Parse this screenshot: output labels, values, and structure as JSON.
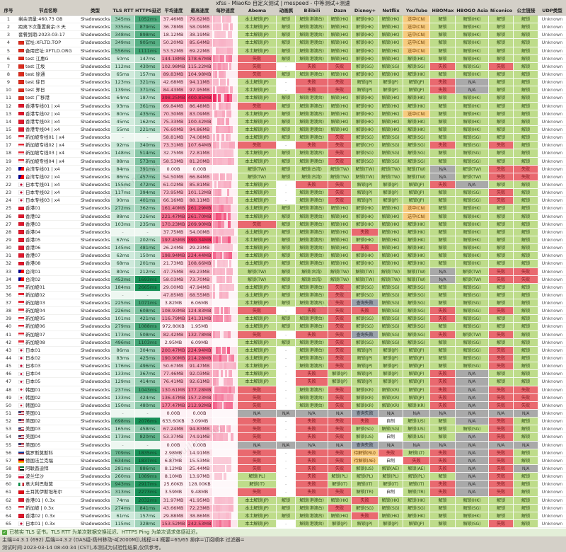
{
  "title": "xfss - MiaoKo 自定义测试 | mespeed - 中等测试+测速",
  "columns": [
    "序号",
    "节点名称",
    "类型",
    "TLS RTT",
    "HTTPS延迟",
    "平均速度",
    "最高速度",
    "每秒速度",
    "Abema",
    "动画疯",
    "Bilibili",
    "Dazn",
    "Disney+",
    "Netflix",
    "YouTube",
    "HBOMax",
    "HBOGO Asia",
    "Niconico",
    "公主链接",
    "UDP类型"
  ],
  "node_type": "Shadowsocks",
  "udp_all": "Unknown",
  "watermark": "@guilincong",
  "colors": {
    "header_bg": "#d4d0c8",
    "unlock_green": "#bedc8a",
    "fail_red": "#e9696f",
    "warn_orange": "#f7cb7e",
    "na_gray": "#a9a9a9",
    "query_gray": "#99a1ab",
    "latency_green_dark": "#169054",
    "latency_green_light": "#e2f3e9",
    "speed_pink_light": "#fdf0f4",
    "speed_red_dark": "#f13764"
  },
  "service_patterns": {
    "A": [
      "本土解锁(JP)",
      "解锁",
      "解锁(港澳台)",
      "解锁(HK)",
      "解锁(HK)",
      "解锁(HK)",
      "送中(CN)",
      "解锁",
      "解锁(HK)",
      "解锁",
      "解锁"
    ],
    "HK": [
      "本土解锁(JP)",
      "解锁",
      "解锁(港澳台)",
      "解锁(HK)",
      "解锁(HK)",
      "解锁(HK)",
      "解锁(HK)",
      "解锁",
      "解锁(HK)",
      "解锁",
      "解锁"
    ],
    "FAB": [
      "失败",
      "解锁",
      "解锁(港澳台)",
      "解锁(HK)",
      "解锁(HK)",
      "解锁(HK)",
      "解锁(HK)",
      "解锁",
      "解锁(HK)",
      "解锁",
      "解锁"
    ],
    "HKDF": [
      "本土解锁(JP)",
      "解锁",
      "解锁(港澳台)",
      "解锁(HK)",
      "失败",
      "解锁(HK)",
      "解锁(HK)",
      "解锁",
      "解锁(HK)",
      "解锁",
      "解锁"
    ],
    "SG": [
      "本土解锁(JP)",
      "解锁",
      "解锁(港澳台)",
      "失败",
      "解锁(SG)",
      "解锁(SG)",
      "解锁(SG)",
      "解锁",
      "解锁(SG)",
      "解锁",
      "解锁"
    ],
    "SGT": [
      "失败",
      "-",
      "失败",
      "失败",
      "解锁(SG)",
      "解锁(SG)",
      "解锁(SG)",
      "失败",
      "解锁(SG)",
      "失败",
      "解锁"
    ],
    "SGCH": [
      "失败",
      "-",
      "失败",
      "失败",
      "解锁(CH)",
      "解锁(SG)",
      "解锁(SG)",
      "失败",
      "解锁(SG)",
      "失败",
      "解锁"
    ],
    "SGQ": [
      "本土解锁(JP)",
      "解锁",
      "解锁(港澳台)",
      "失败",
      "查询失败",
      "解锁(SG)",
      "解锁(SG)",
      "解锁",
      "解锁(SG)",
      "解锁",
      "解锁"
    ],
    "SGF": [
      "失败",
      "-",
      "失败",
      "失败",
      "失败",
      "解锁(SG)",
      "解锁(SG)",
      "失败",
      "解锁(SG)",
      "失败",
      "解锁"
    ],
    "SGH": [
      "本土解锁(JP)",
      "解锁",
      "解锁(港澳台)",
      "失败",
      "解锁(SG)",
      "解锁(SG)",
      "解锁(SG)",
      "失败",
      "解锁(SG)",
      "解锁",
      "解锁"
    ],
    "SGQ2": [
      "失败",
      "-",
      "失败",
      "失败",
      "查询失败",
      "解锁(SG)",
      "解锁(SG)",
      "失败",
      "解锁(TW)",
      "失败",
      "解锁"
    ],
    "TW": [
      "解锁(TW)",
      "解锁",
      "解锁(台湾)",
      "解锁(TW)",
      "解锁(TW)",
      "解锁(TW)",
      "解锁(TW)",
      "N/A",
      "解锁(TW)",
      "失败",
      "失败"
    ],
    "JPT": [
      "本土解锁(JP)",
      "-",
      "失败",
      "失败",
      "解锁(JP)",
      "解锁(JP)",
      "解锁(JP)",
      "失败",
      "N/A",
      "解锁",
      "解锁"
    ],
    "JPSG": [
      "本土解锁(JP)",
      "-",
      "解锁(港澳台)",
      "失败",
      "解锁(JP)",
      "解锁(JP)",
      "解锁(JP)",
      "解锁",
      "解锁(SG)",
      "失败",
      "解锁"
    ],
    "JP2": [
      "本土解锁(JP)",
      "-",
      "失败",
      "解锁(JP)",
      "解锁(JP)",
      "解锁(JP)",
      "解锁(JP)",
      "失败",
      "N/A",
      "解锁",
      "解锁"
    ],
    "KRJ": [
      "失败",
      "-",
      "解锁(港澳台)",
      "失败",
      "解锁(KR)",
      "解锁(KR)",
      "解锁(JP)",
      "失败",
      "N/A",
      "失败",
      "失败"
    ],
    "KR": [
      "失败",
      "-",
      "解锁(港澳台)",
      "失败",
      "解锁(KR)",
      "解锁(KR)",
      "解锁(KR)",
      "失败",
      "N/A",
      "失败",
      "失败"
    ],
    "NA": [
      "N/A",
      "N/A",
      "N/A",
      "N/A",
      "查询失败",
      "N/A",
      "N/A",
      "N/A",
      "N/A",
      "N/A",
      "N/A"
    ],
    "US2": [
      "失败",
      "-",
      "失败",
      "失败",
      "失败",
      "自制",
      "解锁(US)",
      "解锁",
      "N/A",
      "失败",
      "解锁"
    ],
    "US3": [
      "失败",
      "-",
      "失败",
      "失败",
      "解锁(SG)",
      "解锁(SG)",
      "解锁(US)",
      "解锁",
      "解锁(SG)",
      "失败",
      "解锁"
    ],
    "US4": [
      "失败",
      "-",
      "失败",
      "失败",
      "解锁(US)",
      "自制",
      "解锁(US)",
      "解锁",
      "N/A",
      "失败",
      "解锁"
    ],
    "RU": [
      "失败",
      "-",
      "失败",
      "失败",
      "待解锁(RU)",
      "失败",
      "解锁(LT)",
      "失败",
      "N/A",
      "失败",
      "解锁"
    ],
    "DE": [
      "失败",
      "-",
      "失败",
      "失败",
      "待解锁(AE)",
      "自制",
      "失败",
      "失败",
      "N/A",
      "失败",
      "解锁"
    ],
    "AE": [
      "失败",
      "-",
      "失败",
      "失败",
      "解锁(US)",
      "解锁(AE)",
      "解锁(AE)",
      "失败",
      "N/A",
      "失败",
      "N/A"
    ],
    "PL": [
      "解锁(PL)",
      "-",
      "失败",
      "解锁(PL)",
      "解锁(PL)",
      "解锁(PL)",
      "解锁(PL)",
      "解锁",
      "N/A",
      "失败",
      "解锁"
    ],
    "IT": [
      "解锁(IT)",
      "-",
      "失败",
      "解锁(IT)",
      "解锁(IT)",
      "解锁(IT)",
      "解锁(IT)",
      "失败",
      "N/A",
      "失败",
      "解锁"
    ],
    "TR": [
      "失败",
      "-",
      "失败",
      "失败",
      "解锁(TR)",
      "自制",
      "解锁(TR)",
      "失败",
      "N/A",
      "失败",
      "解锁"
    ],
    "JP65": [
      "本土解锁(JP)",
      "-",
      "解锁(港澳台)",
      "解锁(JP)",
      "解锁(JP)",
      "解锁(JP)",
      "解锁(JP)",
      "解锁",
      "解锁(SG)",
      "失败",
      "解锁"
    ]
  },
  "rows": [
    [
      "",
      "剩余流量:460.73 GB",
      "345ms",
      "1052ms",
      "37.46MB",
      "79.62MB",
      "A"
    ],
    [
      "",
      "距离下次重置剩余:3 天",
      "335ms",
      "879ms",
      "36.78MB",
      "58.09MB",
      "A"
    ],
    [
      "",
      "套餐到期:2023-03-17",
      "348ms",
      "898ms",
      "18.12MB",
      "38.19MB",
      "A"
    ],
    [
      "cn",
      "官址:XFLTD.TOP",
      "349ms",
      "905ms",
      "50.20MB",
      "85.64MB",
      "A"
    ],
    [
      "cn",
      "备用官址:XFTLD.ORG",
      "556ms",
      "1111ms",
      "53.52MB",
      "69.22MB",
      "A"
    ],
    [
      "cn",
      "test 江惠G",
      "50ms",
      "147ms",
      "144.18MB",
      "178.67MB",
      "FAB"
    ],
    [
      "cn",
      "test 江坂",
      "112ms",
      "430ms",
      "102.98MB",
      "115.22MB",
      "SGT"
    ],
    [
      "cn",
      "test 徐通",
      "65ms",
      "157ms",
      "89.83MB",
      "104.98MB",
      "FAB"
    ],
    [
      "cn",
      "test 徐日",
      "123ms",
      "321ms",
      "42.68MB",
      "94.11MB",
      "JPT"
    ],
    [
      "cn",
      "test 郑日",
      "139ms",
      "371ms",
      "84.43MB",
      "97.95MB",
      "JPT"
    ],
    [
      "cn",
      "test 广移港",
      "64ms",
      "187ms",
      "398.25MB",
      "400.85MB",
      "HK"
    ],
    [
      "hk",
      "香港专线01 | x4",
      "93ms",
      "361ms",
      "69.84MB",
      "86.48MB",
      "FAB"
    ],
    [
      "hk",
      "香港专线02 | x4",
      "80ms",
      "435ms",
      "70.30MB",
      "83.09MB",
      "A"
    ],
    [
      "hk",
      "香港专线03 | x4",
      "45ms",
      "162ms",
      "75.33MB",
      "100.42MB",
      "HK"
    ],
    [
      "hk",
      "香港专线04 | x4",
      "55ms",
      "221ms",
      "76.60MB",
      "94.86MB",
      "HK"
    ],
    [
      "sg",
      "新加坡专线01 | x4",
      "-",
      "-",
      "58.81MB",
      "74.08MB",
      "SG"
    ],
    [
      "sg",
      "新加坡专线02 | x4",
      "92ms",
      "340ms",
      "73.31MB",
      "107.64MB",
      "SGCH"
    ],
    [
      "sg",
      "新加坡专线03 | x4",
      "148ms",
      "514ms",
      "32.75MB",
      "72.81MB",
      "SG"
    ],
    [
      "sg",
      "新加坡专线04 | x4",
      "88ms",
      "573ms",
      "58.53MB",
      "81.20MB",
      "SG"
    ],
    [
      "tw",
      "台湾专线01 | x4",
      "84ms",
      "391ms",
      "0.00B",
      "0.00B",
      "TW"
    ],
    [
      "tw",
      "台湾专线02 | x4",
      "86ms",
      "457ms",
      "54.50MB",
      "66.84MB",
      "TW"
    ],
    [
      "jp",
      "日本专线01 | x4",
      "155ms",
      "472ms",
      "61.02MB",
      "85.81MB",
      "JPT"
    ],
    [
      "jp",
      "日本专线02 | x4",
      "117ms",
      "394ms",
      "73.95MB",
      "101.12MB",
      "JPSG"
    ],
    [
      "jp",
      "日本专线03 | x4",
      "90ms",
      "401ms",
      "66.16MB",
      "88.11MB",
      "JPSG"
    ],
    [
      "hk",
      "香港01",
      "272ms",
      "362ms",
      "161.40MB",
      "261.29MB",
      "A"
    ],
    [
      "hk",
      "香港02",
      "88ms",
      "226ms",
      "221.47MB",
      "261.70MB",
      "A"
    ],
    [
      "hk",
      "香港03",
      "103ms",
      "235ms",
      "170.23MB",
      "209.90MB",
      "FAB"
    ],
    [
      "hk",
      "香港04",
      "-",
      "-",
      "37.75MB",
      "54.00MB",
      "HKDF"
    ],
    [
      "hk",
      "香港05",
      "67ms",
      "202ms",
      "197.45MB",
      "390.34MB",
      "HK"
    ],
    [
      "hk",
      "香港06",
      "145ms",
      "481ms",
      "26.24MB",
      "29.23MB",
      "HKDF"
    ],
    [
      "hk",
      "香港07",
      "62ms",
      "150ms",
      "198.94MB",
      "224.44MB",
      "HK"
    ],
    [
      "hk",
      "香港08",
      "68ms",
      "201ms",
      "21.73MB",
      "108.66MB",
      "HK"
    ],
    [
      "tw",
      "台湾01",
      "80ms",
      "212ms",
      "47.75MB",
      "69.23MB",
      "TW"
    ],
    [
      "tw",
      "台湾02",
      "452ms",
      "1693ms",
      "58.03MB",
      "73.70MB",
      "TW"
    ],
    [
      "sg",
      "新加坡01",
      "184ms",
      "2665ms",
      "29.00MB",
      "47.94MB",
      "SG"
    ],
    [
      "sg",
      "新加坡02",
      "-",
      "-",
      "47.85MB",
      "68.55MB",
      "SG"
    ],
    [
      "sg",
      "新加坡03",
      "225ms",
      "1071ms",
      "3.82MB",
      "6.06MB",
      "SGQ"
    ],
    [
      "sg",
      "新加坡04",
      "226ms",
      "608ms",
      "108.93MB",
      "124.83MB",
      "SGF"
    ],
    [
      "sg",
      "新加坡05",
      "101ms",
      "421ms",
      "116.79MB",
      "141.31MB",
      "SGH"
    ],
    [
      "sg",
      "新加坡06",
      "279ms",
      "1088ms",
      "972.80KB",
      "1.95MB",
      "SG"
    ],
    [
      "sg",
      "新加坡07",
      "173ms",
      "508ms",
      "82.42MB",
      "132.78MB",
      "SGQ2"
    ],
    [
      "sg",
      "新加坡08",
      "496ms",
      "1103ms",
      "2.95MB",
      "6.09MB",
      "SG"
    ],
    [
      "jp",
      "日本01",
      "86ms",
      "304ms",
      "200.47MB",
      "224.94MB",
      "JPSG"
    ],
    [
      "jp",
      "日本02",
      "83ms",
      "425ms",
      "190.90MB",
      "214.28MB",
      "JPSG"
    ],
    [
      "jp",
      "日本03",
      "176ms",
      "496ms",
      "50.67MB",
      "91.47MB",
      "JPSG"
    ],
    [
      "jp",
      "日本04",
      "133ms",
      "367ms",
      "77.46MB",
      "92.03MB",
      "JP2"
    ],
    [
      "jp",
      "日本05",
      "129ms",
      "414ms",
      "76.41MB",
      "92.61MB",
      "JP2"
    ],
    [
      "kr",
      "韩国01",
      "237ms",
      "1043ms",
      "130.61MB",
      "177.28MB",
      "KRJ"
    ],
    [
      "kr",
      "韩国02",
      "133ms",
      "424ms",
      "136.47MB",
      "157.23MB",
      "KRJ"
    ],
    [
      "kr",
      "韩国03",
      "150ms",
      "480ms",
      "177.47MB",
      "212.92MB",
      "KR"
    ],
    [
      "us",
      "美国01",
      "-",
      "-",
      "0.00B",
      "0.00B",
      "NA"
    ],
    [
      "us",
      "美国02",
      "698ms",
      "2076ms",
      "633.60KB",
      "3.09MB",
      "US2"
    ],
    [
      "us",
      "美国03",
      "165ms",
      "458ms",
      "67.24MB",
      "94.83MB",
      "US3"
    ],
    [
      "us",
      "美国04",
      "173ms",
      "820ms",
      "53.37MB",
      "74.91MB",
      "US4"
    ],
    [
      "us",
      "美国05",
      "-",
      "-",
      "0.00B",
      "0.00B",
      "NA"
    ],
    [
      "ru",
      "俄罗斯莫斯科",
      "709ms",
      "1835ms",
      "2.98MB",
      "14.91MB",
      "RU"
    ],
    [
      "de",
      "德国法兰克福",
      "634ms",
      "1837ms",
      "6.87MB",
      "15.53MB",
      "DE"
    ],
    [
      "ae",
      "阿联酋迪拜",
      "281ms",
      "886ms",
      "8.12MB",
      "25.44MB",
      "AE"
    ],
    [
      "pl",
      "波兰华沙",
      "260ms",
      "1089ms",
      "8.10MB",
      "13.97MB",
      "PL"
    ],
    [
      "it",
      "意大利巴勒莫",
      "943ms",
      "2917ms",
      "25.60KB",
      "128.00KB",
      "IT"
    ],
    [
      "tr",
      "土耳其伊斯坦布尔",
      "313ms",
      "2273ms",
      "3.59MB",
      "9.48MB",
      "TR"
    ],
    [
      "hk",
      "香港01 | 0.3x",
      "74ms",
      "2032ms",
      "31.97MB",
      "41.95MB",
      "HKDF"
    ],
    [
      "sg",
      "新加坡 | 0.3x",
      "274ms",
      "841ms",
      "43.66MB",
      "72.23MB",
      "SG"
    ],
    [
      "hk",
      "香港02 | 0.3x",
      "61ms",
      "157ms",
      "29.88MB",
      "38.86MB",
      "HKDF"
    ],
    [
      "jp",
      "日本01 | 0.3x",
      "115ms",
      "328ms",
      "153.52MB",
      "242.53MB",
      "JP65"
    ]
  ],
  "footer": {
    "verify": "已核实 TLS 证书。TLS RTT 为单次数据交换延迟、HTTPS Ping 为单次请求体感延迟。",
    "info": "主端=4.3.1 (692) 后端=4.3.2 (DAS组-扬州移动-4[2000M]),线程=4 概要=65/65 排序=订阅顺序 过滤器=",
    "time": "测试时间:2023-03-14 08:40:34 (CST),本测试为试验性结果,仅供参考。"
  }
}
